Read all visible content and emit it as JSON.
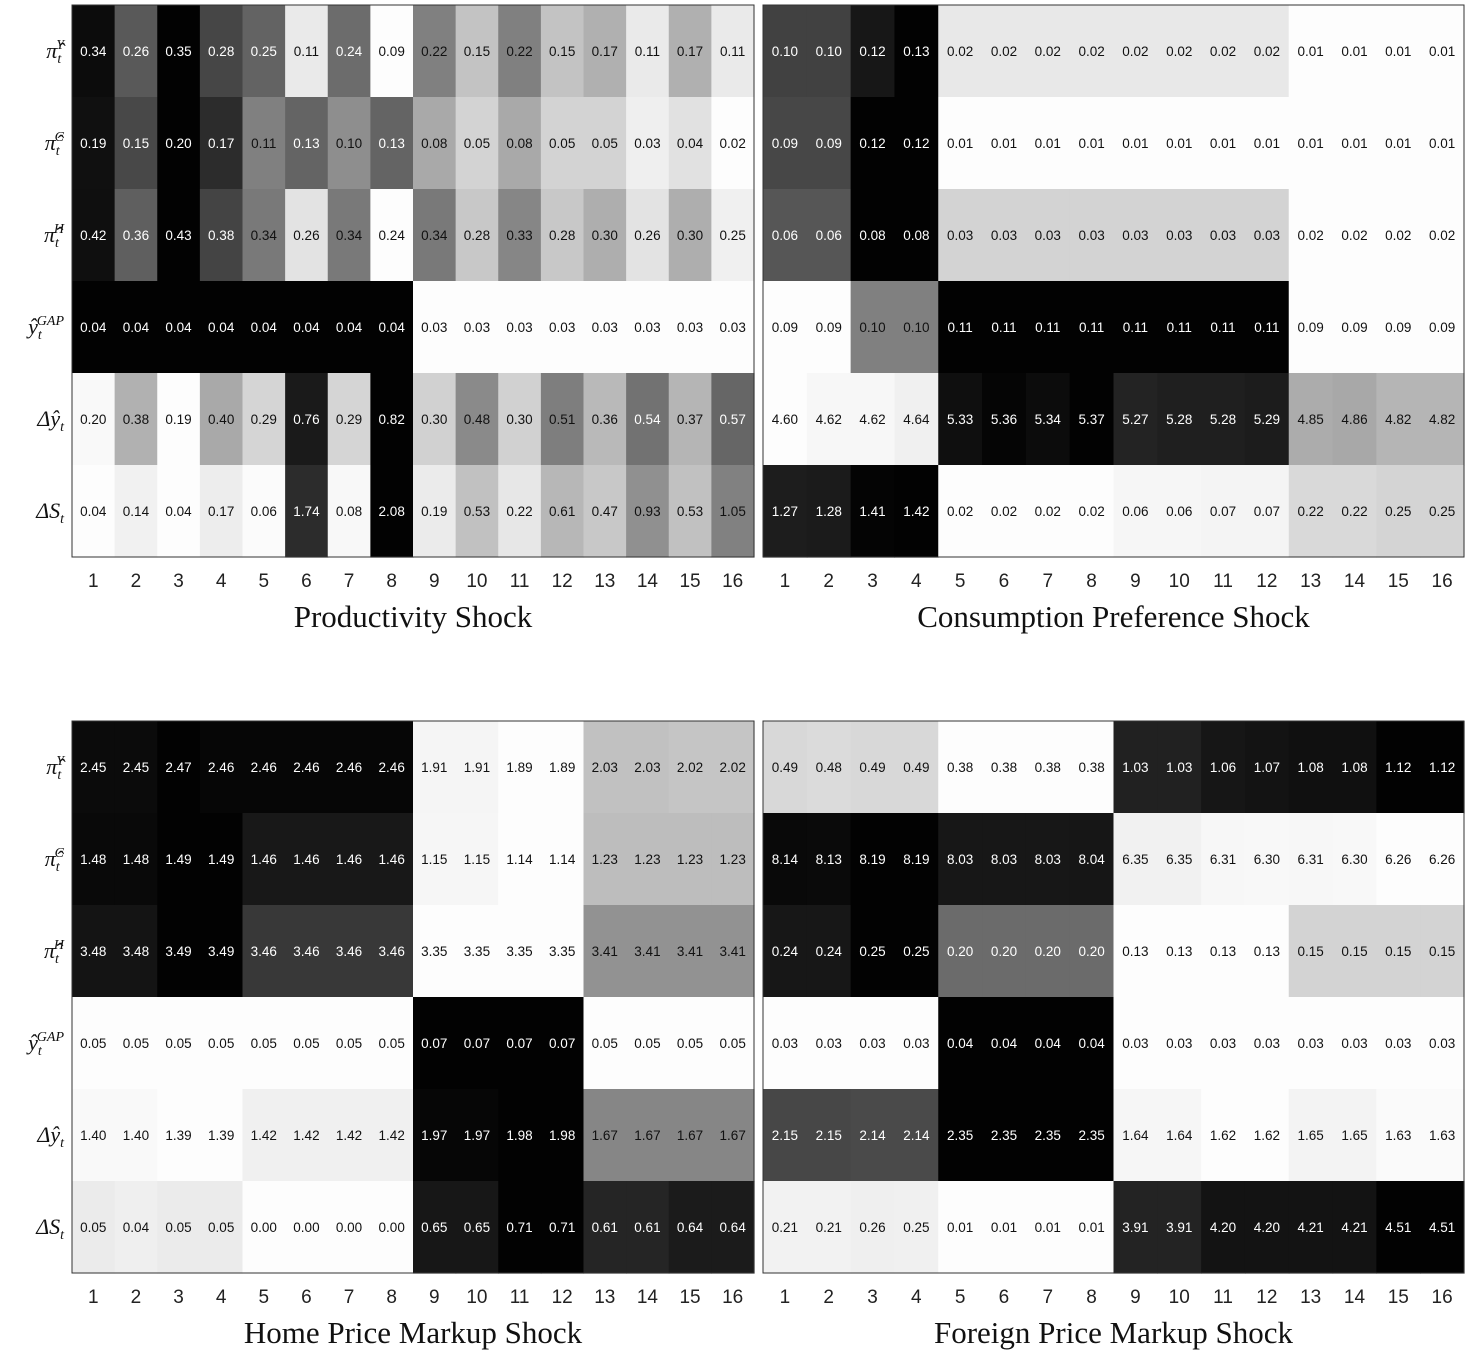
{
  "chart_data": [
    {
      "type": "heatmap",
      "title": "Productivity Shock",
      "rows": [
        "π̂tY",
        "π̂tC",
        "π̂tH",
        "ŷtGAP",
        "Δŷt",
        "ΔSt"
      ],
      "row_labels": [
        {
          "base": "π̂",
          "sub": "t",
          "sup": "Y"
        },
        {
          "base": "π̂",
          "sub": "t",
          "sup": "C"
        },
        {
          "base": "π̂",
          "sub": "t",
          "sup": "H"
        },
        {
          "base": "ŷ",
          "sub": "t",
          "sup": "GAP"
        },
        {
          "base": "Δŷ",
          "sub": "t",
          "sup": ""
        },
        {
          "base": "ΔS",
          "sub": "t",
          "sup": ""
        }
      ],
      "columns": [
        "1",
        "2",
        "3",
        "4",
        "5",
        "6",
        "7",
        "8",
        "9",
        "10",
        "11",
        "12",
        "13",
        "14",
        "15",
        "16"
      ],
      "values": [
        [
          0.34,
          0.26,
          0.35,
          0.28,
          0.25,
          0.11,
          0.24,
          0.09,
          0.22,
          0.15,
          0.22,
          0.15,
          0.17,
          0.11,
          0.17,
          0.11
        ],
        [
          0.19,
          0.15,
          0.2,
          0.17,
          0.11,
          0.13,
          0.1,
          0.13,
          0.08,
          0.05,
          0.08,
          0.05,
          0.05,
          0.03,
          0.04,
          0.02
        ],
        [
          0.42,
          0.36,
          0.43,
          0.38,
          0.34,
          0.26,
          0.34,
          0.24,
          0.34,
          0.28,
          0.33,
          0.28,
          0.3,
          0.26,
          0.3,
          0.25
        ],
        [
          0.04,
          0.04,
          0.04,
          0.04,
          0.04,
          0.04,
          0.04,
          0.04,
          0.03,
          0.03,
          0.03,
          0.03,
          0.03,
          0.03,
          0.03,
          0.03
        ],
        [
          0.2,
          0.38,
          0.19,
          0.4,
          0.29,
          0.76,
          0.29,
          0.82,
          0.3,
          0.48,
          0.3,
          0.51,
          0.36,
          0.54,
          0.37,
          0.57
        ],
        [
          0.04,
          0.14,
          0.04,
          0.17,
          0.06,
          1.74,
          0.08,
          2.08,
          0.19,
          0.53,
          0.22,
          0.61,
          0.47,
          0.93,
          0.53,
          1.05
        ]
      ],
      "labels": [
        [
          "0.34",
          "0.26",
          "0.35",
          "0.28",
          "0.25",
          "0.11",
          "0.24",
          "0.09",
          "0.22",
          "0.15",
          "0.22",
          "0.15",
          "0.17",
          "0.11",
          "0.17",
          "0.11"
        ],
        [
          "0.19",
          "0.15",
          "0.20",
          "0.17",
          "0.11",
          "0.13",
          "0.10",
          "0.13",
          "0.08",
          "0.05",
          "0.08",
          "0.05",
          "0.05",
          "0.03",
          "0.04",
          "0.02"
        ],
        [
          "0.42",
          "0.36",
          "0.43",
          "0.38",
          "0.34",
          "0.26",
          "0.34",
          "0.24",
          "0.34",
          "0.28",
          "0.33",
          "0.28",
          "0.30",
          "0.26",
          "0.30",
          "0.25"
        ],
        [
          "0.04",
          "0.04",
          "0.04",
          "0.04",
          "0.04",
          "0.04",
          "0.04",
          "0.04",
          "0.03",
          "0.03",
          "0.03",
          "0.03",
          "0.03",
          "0.03",
          "0.03",
          "0.03"
        ],
        [
          "0.20",
          "0.38",
          "0.19",
          "0.40",
          "0.29",
          "0.76",
          "0.29",
          "0.82",
          "0.30",
          "0.48",
          "0.30",
          "0.51",
          "0.36",
          "0.54",
          "0.37",
          "0.57"
        ],
        [
          "0.04",
          "0.14",
          "0.04",
          "0.17",
          "0.06",
          "1.74",
          "0.08",
          "2.08",
          "0.19",
          "0.53",
          "0.22",
          "0.61",
          "0.47",
          "0.93",
          "0.53",
          "1.05"
        ]
      ],
      "colormap": "gray_r, normalized per row"
    },
    {
      "type": "heatmap",
      "title": "Consumption Preference Shock",
      "rows": [
        "π̂tY",
        "π̂tC",
        "π̂tH",
        "ŷtGAP",
        "Δŷt",
        "ΔSt"
      ],
      "row_labels": [],
      "columns": [
        "1",
        "2",
        "3",
        "4",
        "5",
        "6",
        "7",
        "8",
        "9",
        "10",
        "11",
        "12",
        "13",
        "14",
        "15",
        "16"
      ],
      "values": [
        [
          0.1,
          0.1,
          0.12,
          0.13,
          0.02,
          0.02,
          0.02,
          0.02,
          0.02,
          0.02,
          0.02,
          0.02,
          0.01,
          0.01,
          0.01,
          0.01
        ],
        [
          0.09,
          0.09,
          0.12,
          0.12,
          0.01,
          0.01,
          0.01,
          0.01,
          0.01,
          0.01,
          0.01,
          0.01,
          0.01,
          0.01,
          0.01,
          0.01
        ],
        [
          0.06,
          0.06,
          0.08,
          0.08,
          0.03,
          0.03,
          0.03,
          0.03,
          0.03,
          0.03,
          0.03,
          0.03,
          0.02,
          0.02,
          0.02,
          0.02
        ],
        [
          0.09,
          0.09,
          0.1,
          0.1,
          0.11,
          0.11,
          0.11,
          0.11,
          0.11,
          0.11,
          0.11,
          0.11,
          0.09,
          0.09,
          0.09,
          0.09
        ],
        [
          4.6,
          4.62,
          4.62,
          4.64,
          5.33,
          5.36,
          5.34,
          5.37,
          5.27,
          5.28,
          5.28,
          5.29,
          4.85,
          4.86,
          4.82,
          4.82
        ],
        [
          1.27,
          1.28,
          1.41,
          1.42,
          0.02,
          0.02,
          0.02,
          0.02,
          0.06,
          0.06,
          0.07,
          0.07,
          0.22,
          0.22,
          0.25,
          0.25
        ]
      ],
      "labels": [
        [
          "0.10",
          "0.10",
          "0.12",
          "0.13",
          "0.02",
          "0.02",
          "0.02",
          "0.02",
          "0.02",
          "0.02",
          "0.02",
          "0.02",
          "0.01",
          "0.01",
          "0.01",
          "0.01"
        ],
        [
          "0.09",
          "0.09",
          "0.12",
          "0.12",
          "0.01",
          "0.01",
          "0.01",
          "0.01",
          "0.01",
          "0.01",
          "0.01",
          "0.01",
          "0.01",
          "0.01",
          "0.01",
          "0.01"
        ],
        [
          "0.06",
          "0.06",
          "0.08",
          "0.08",
          "0.03",
          "0.03",
          "0.03",
          "0.03",
          "0.03",
          "0.03",
          "0.03",
          "0.03",
          "0.02",
          "0.02",
          "0.02",
          "0.02"
        ],
        [
          "0.09",
          "0.09",
          "0.10",
          "0.10",
          "0.11",
          "0.11",
          "0.11",
          "0.11",
          "0.11",
          "0.11",
          "0.11",
          "0.11",
          "0.09",
          "0.09",
          "0.09",
          "0.09"
        ],
        [
          "4.60",
          "4.62",
          "4.62",
          "4.64",
          "5.33",
          "5.36",
          "5.34",
          "5.37",
          "5.27",
          "5.28",
          "5.28",
          "5.29",
          "4.85",
          "4.86",
          "4.82",
          "4.82"
        ],
        [
          "1.27",
          "1.28",
          "1.41",
          "1.42",
          "0.02",
          "0.02",
          "0.02",
          "0.02",
          "0.06",
          "0.06",
          "0.07",
          "0.07",
          "0.22",
          "0.22",
          "0.25",
          "0.25"
        ]
      ],
      "colormap": "gray_r, normalized per row"
    },
    {
      "type": "heatmap",
      "title": "Home Price Markup Shock",
      "rows": [
        "π̂tY",
        "π̂tC",
        "π̂tH",
        "ŷtGAP",
        "Δŷt",
        "ΔSt"
      ],
      "row_labels": [
        {
          "base": "π̂",
          "sub": "t",
          "sup": "Y"
        },
        {
          "base": "π̂",
          "sub": "t",
          "sup": "C"
        },
        {
          "base": "π̂",
          "sub": "t",
          "sup": "H"
        },
        {
          "base": "ŷ",
          "sub": "t",
          "sup": "GAP"
        },
        {
          "base": "Δŷ",
          "sub": "t",
          "sup": ""
        },
        {
          "base": "ΔS",
          "sub": "t",
          "sup": ""
        }
      ],
      "columns": [
        "1",
        "2",
        "3",
        "4",
        "5",
        "6",
        "7",
        "8",
        "9",
        "10",
        "11",
        "12",
        "13",
        "14",
        "15",
        "16"
      ],
      "values": [
        [
          2.45,
          2.45,
          2.47,
          2.46,
          2.46,
          2.46,
          2.46,
          2.46,
          1.91,
          1.91,
          1.89,
          1.89,
          2.03,
          2.03,
          2.02,
          2.02
        ],
        [
          1.48,
          1.48,
          1.49,
          1.49,
          1.46,
          1.46,
          1.46,
          1.46,
          1.15,
          1.15,
          1.14,
          1.14,
          1.23,
          1.23,
          1.23,
          1.23
        ],
        [
          3.48,
          3.48,
          3.49,
          3.49,
          3.46,
          3.46,
          3.46,
          3.46,
          3.35,
          3.35,
          3.35,
          3.35,
          3.41,
          3.41,
          3.41,
          3.41
        ],
        [
          0.05,
          0.05,
          0.05,
          0.05,
          0.05,
          0.05,
          0.05,
          0.05,
          0.07,
          0.07,
          0.07,
          0.07,
          0.05,
          0.05,
          0.05,
          0.05
        ],
        [
          1.4,
          1.4,
          1.39,
          1.39,
          1.42,
          1.42,
          1.42,
          1.42,
          1.97,
          1.97,
          1.98,
          1.98,
          1.67,
          1.67,
          1.67,
          1.67
        ],
        [
          0.05,
          0.04,
          0.05,
          0.05,
          0.0,
          0.0,
          0.0,
          0.0,
          0.65,
          0.65,
          0.71,
          0.71,
          0.61,
          0.61,
          0.64,
          0.64
        ]
      ],
      "labels": [
        [
          "2.45",
          "2.45",
          "2.47",
          "2.46",
          "2.46",
          "2.46",
          "2.46",
          "2.46",
          "1.91",
          "1.91",
          "1.89",
          "1.89",
          "2.03",
          "2.03",
          "2.02",
          "2.02"
        ],
        [
          "1.48",
          "1.48",
          "1.49",
          "1.49",
          "1.46",
          "1.46",
          "1.46",
          "1.46",
          "1.15",
          "1.15",
          "1.14",
          "1.14",
          "1.23",
          "1.23",
          "1.23",
          "1.23"
        ],
        [
          "3.48",
          "3.48",
          "3.49",
          "3.49",
          "3.46",
          "3.46",
          "3.46",
          "3.46",
          "3.35",
          "3.35",
          "3.35",
          "3.35",
          "3.41",
          "3.41",
          "3.41",
          "3.41"
        ],
        [
          "0.05",
          "0.05",
          "0.05",
          "0.05",
          "0.05",
          "0.05",
          "0.05",
          "0.05",
          "0.07",
          "0.07",
          "0.07",
          "0.07",
          "0.05",
          "0.05",
          "0.05",
          "0.05"
        ],
        [
          "1.40",
          "1.40",
          "1.39",
          "1.39",
          "1.42",
          "1.42",
          "1.42",
          "1.42",
          "1.97",
          "1.97",
          "1.98",
          "1.98",
          "1.67",
          "1.67",
          "1.67",
          "1.67"
        ],
        [
          "0.05",
          "0.04",
          "0.05",
          "0.05",
          "0.00",
          "0.00",
          "0.00",
          "0.00",
          "0.65",
          "0.65",
          "0.71",
          "0.71",
          "0.61",
          "0.61",
          "0.64",
          "0.64"
        ]
      ],
      "colormap": "gray_r, normalized per row"
    },
    {
      "type": "heatmap",
      "title": "Foreign Price Markup Shock",
      "rows": [
        "π̂tY",
        "π̂tC",
        "π̂tH",
        "ŷtGAP",
        "Δŷt",
        "ΔSt"
      ],
      "row_labels": [],
      "columns": [
        "1",
        "2",
        "3",
        "4",
        "5",
        "6",
        "7",
        "8",
        "9",
        "10",
        "11",
        "12",
        "13",
        "14",
        "15",
        "16"
      ],
      "values": [
        [
          0.49,
          0.48,
          0.49,
          0.49,
          0.38,
          0.38,
          0.38,
          0.38,
          1.03,
          1.03,
          1.06,
          1.07,
          1.08,
          1.08,
          1.12,
          1.12
        ],
        [
          8.14,
          8.13,
          8.19,
          8.19,
          8.03,
          8.03,
          8.03,
          8.04,
          6.35,
          6.35,
          6.31,
          6.3,
          6.31,
          6.3,
          6.26,
          6.26
        ],
        [
          0.24,
          0.24,
          0.25,
          0.25,
          0.2,
          0.2,
          0.2,
          0.2,
          0.13,
          0.13,
          0.13,
          0.13,
          0.15,
          0.15,
          0.15,
          0.15
        ],
        [
          0.03,
          0.03,
          0.03,
          0.03,
          0.04,
          0.04,
          0.04,
          0.04,
          0.03,
          0.03,
          0.03,
          0.03,
          0.03,
          0.03,
          0.03,
          0.03
        ],
        [
          2.15,
          2.15,
          2.14,
          2.14,
          2.35,
          2.35,
          2.35,
          2.35,
          1.64,
          1.64,
          1.62,
          1.62,
          1.65,
          1.65,
          1.63,
          1.63
        ],
        [
          0.21,
          0.21,
          0.26,
          0.25,
          0.01,
          0.01,
          0.01,
          0.01,
          3.91,
          3.91,
          4.2,
          4.2,
          4.21,
          4.21,
          4.51,
          4.51
        ]
      ],
      "labels": [
        [
          "0.49",
          "0.48",
          "0.49",
          "0.49",
          "0.38",
          "0.38",
          "0.38",
          "0.38",
          "1.03",
          "1.03",
          "1.06",
          "1.07",
          "1.08",
          "1.08",
          "1.12",
          "1.12"
        ],
        [
          "8.14",
          "8.13",
          "8.19",
          "8.19",
          "8.03",
          "8.03",
          "8.03",
          "8.04",
          "6.35",
          "6.35",
          "6.31",
          "6.30",
          "6.31",
          "6.30",
          "6.26",
          "6.26"
        ],
        [
          "0.24",
          "0.24",
          "0.25",
          "0.25",
          "0.20",
          "0.20",
          "0.20",
          "0.20",
          "0.13",
          "0.13",
          "0.13",
          "0.13",
          "0.15",
          "0.15",
          "0.15",
          "0.15"
        ],
        [
          "0.03",
          "0.03",
          "0.03",
          "0.03",
          "0.04",
          "0.04",
          "0.04",
          "0.04",
          "0.03",
          "0.03",
          "0.03",
          "0.03",
          "0.03",
          "0.03",
          "0.03",
          "0.03"
        ],
        [
          "2.15",
          "2.15",
          "2.14",
          "2.14",
          "2.35",
          "2.35",
          "2.35",
          "2.35",
          "1.64",
          "1.64",
          "1.62",
          "1.62",
          "1.65",
          "1.65",
          "1.63",
          "1.63"
        ],
        [
          "0.21",
          "0.21",
          "0.26",
          "0.25",
          "0.01",
          "0.01",
          "0.01",
          "0.01",
          "3.91",
          "3.91",
          "4.20",
          "4.20",
          "4.21",
          "4.21",
          "4.51",
          "4.51"
        ]
      ],
      "colormap": "gray_r, normalized per row"
    }
  ]
}
